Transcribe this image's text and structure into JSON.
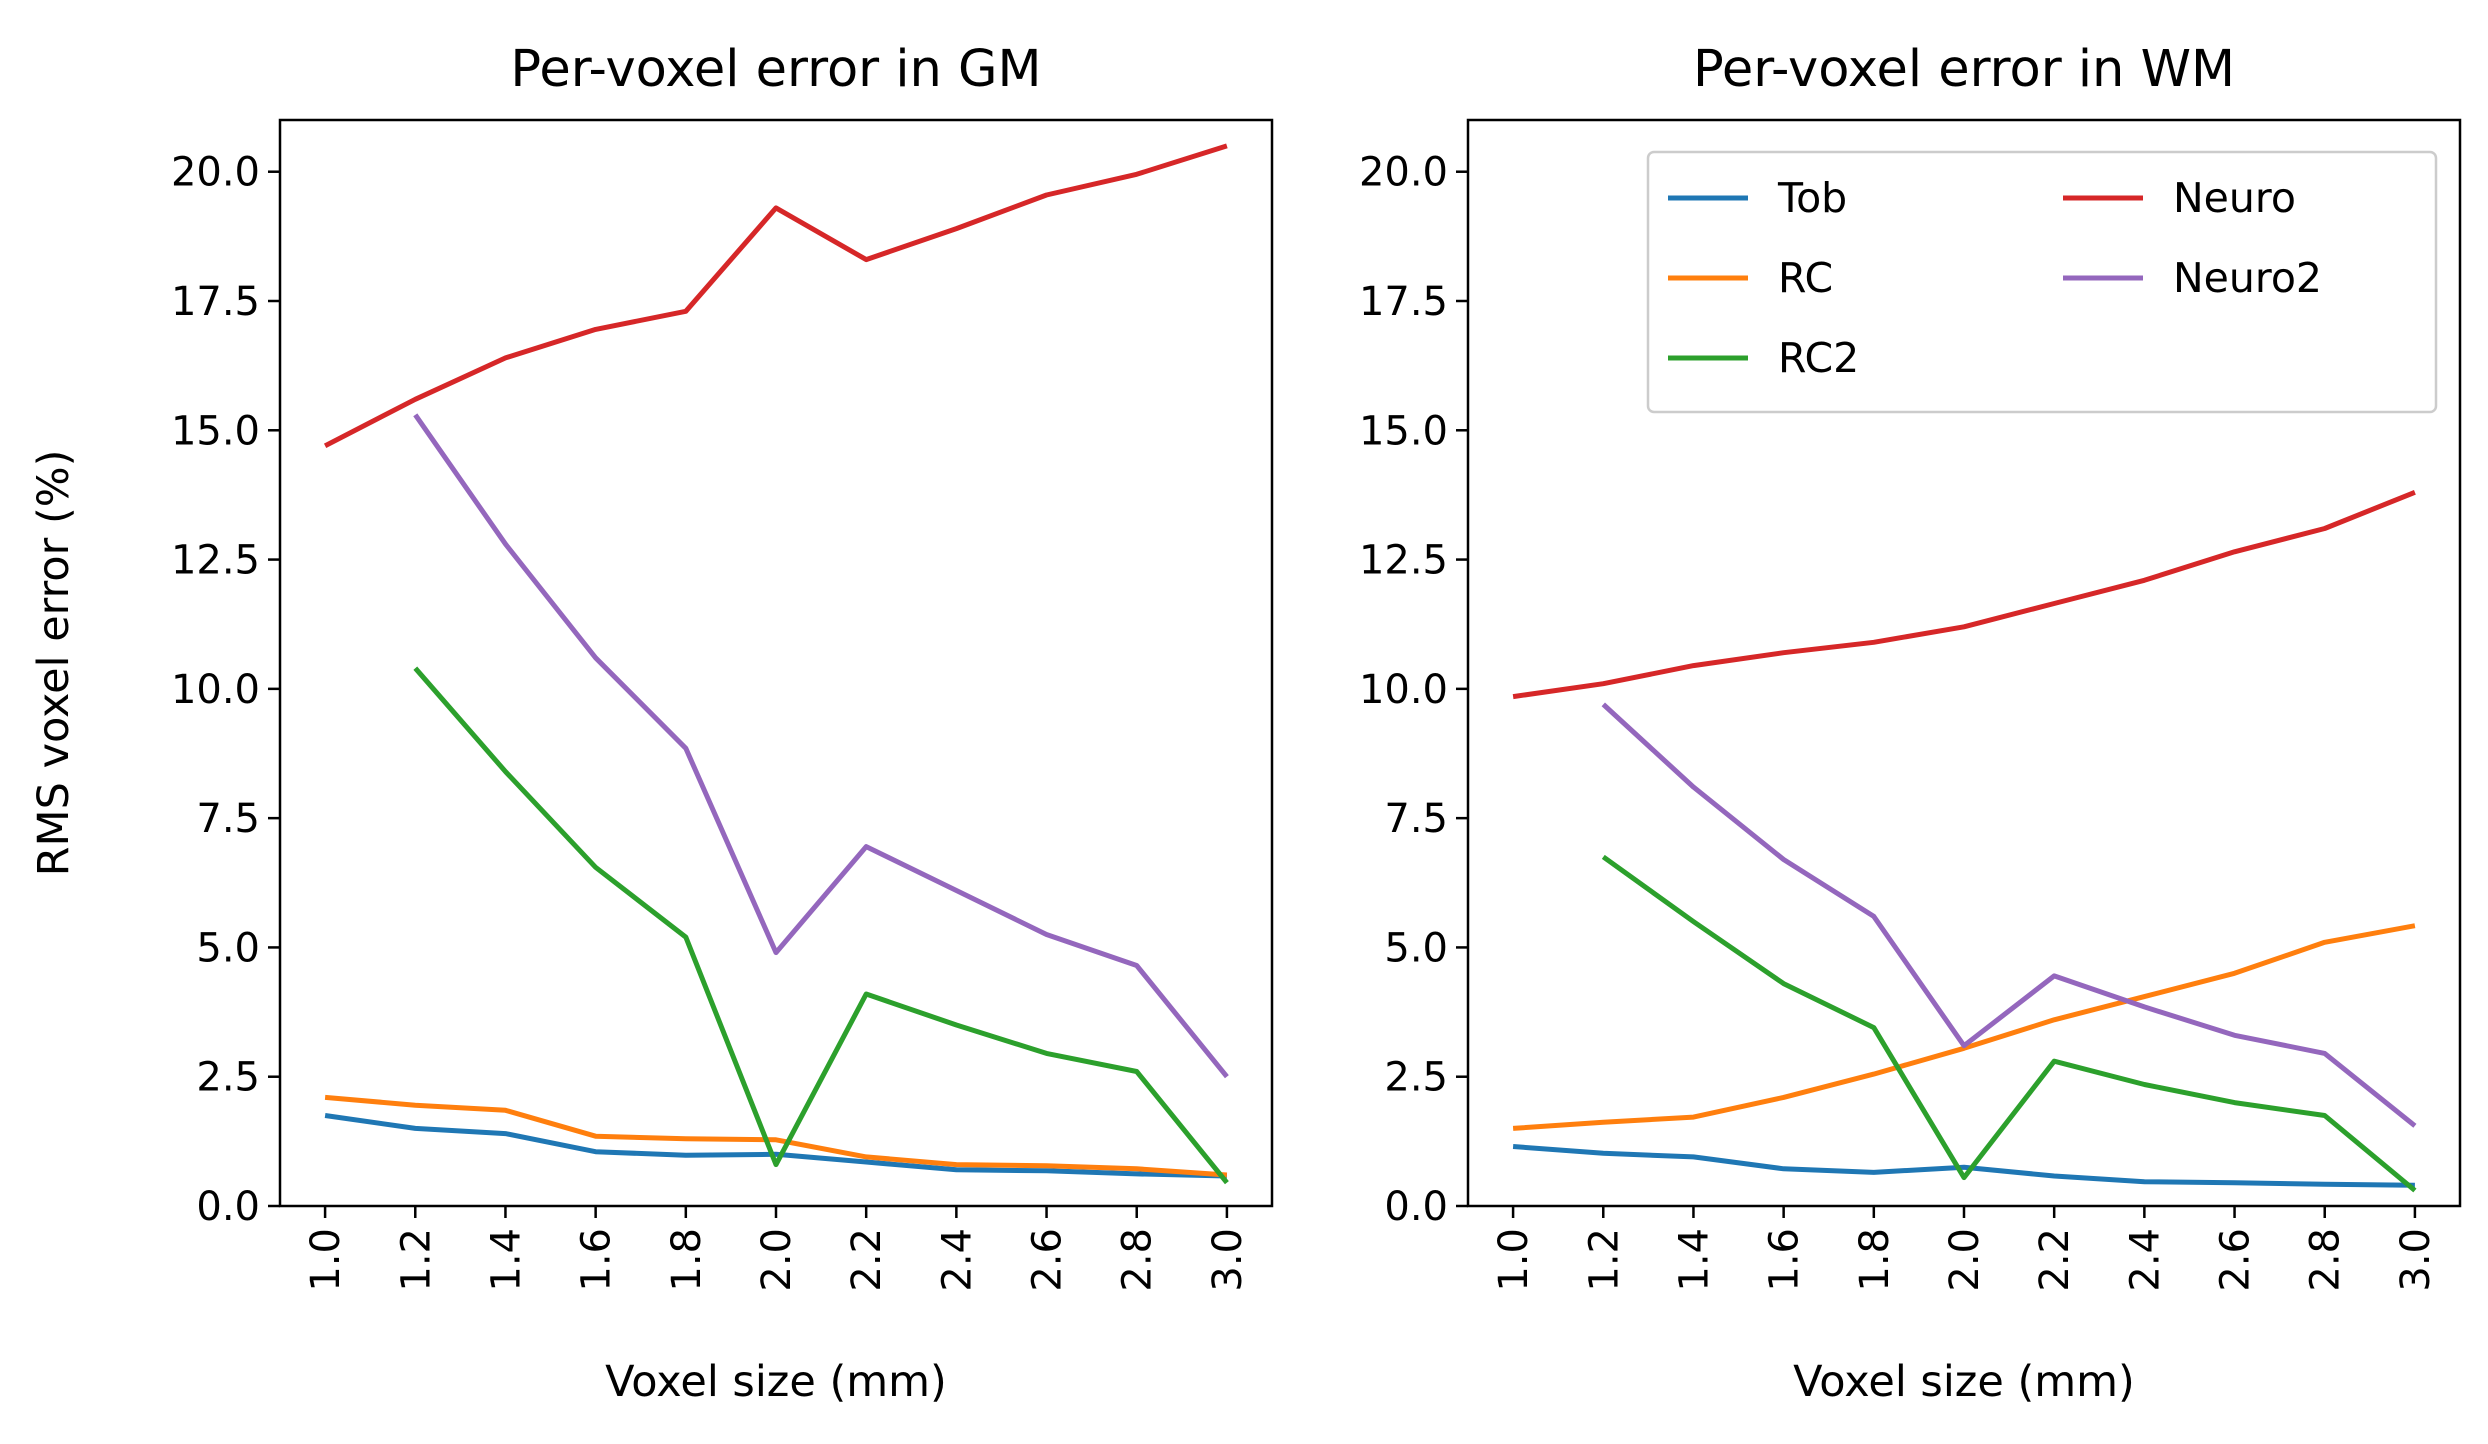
{
  "colors": {
    "Tob": "#1f77b4",
    "RC": "#ff7f0e",
    "RC2": "#2ca02c",
    "Neuro": "#d62728",
    "Neuro2": "#9467bd"
  },
  "chart_data": [
    {
      "type": "line",
      "title": "Per-voxel error in GM",
      "xlabel": "Voxel size (mm)",
      "ylabel": "RMS voxel error (%)",
      "xlim": [
        0.9,
        3.1
      ],
      "ylim": [
        0,
        21
      ],
      "x_ticks": [
        "1.0",
        "1.2",
        "1.4",
        "1.6",
        "1.8",
        "2.0",
        "2.2",
        "2.4",
        "2.6",
        "2.8",
        "3.0"
      ],
      "y_ticks": [
        "0.0",
        "2.5",
        "5.0",
        "7.5",
        "10.0",
        "12.5",
        "15.0",
        "17.5",
        "20.0"
      ],
      "grid": false,
      "legend": null,
      "series": [
        {
          "name": "Tob",
          "x": [
            1.0,
            1.2,
            1.4,
            1.6,
            1.8,
            2.0,
            2.2,
            2.4,
            2.6,
            2.8,
            3.0
          ],
          "values": [
            1.75,
            1.5,
            1.4,
            1.05,
            0.98,
            1.0,
            0.85,
            0.7,
            0.68,
            0.62,
            0.58
          ]
        },
        {
          "name": "RC",
          "x": [
            1.0,
            1.2,
            1.4,
            1.6,
            1.8,
            2.0,
            2.2,
            2.4,
            2.6,
            2.8,
            3.0
          ],
          "values": [
            2.1,
            1.95,
            1.85,
            1.35,
            1.3,
            1.28,
            0.95,
            0.8,
            0.78,
            0.72,
            0.6
          ]
        },
        {
          "name": "RC2",
          "x": [
            1.2,
            1.4,
            1.6,
            1.8,
            2.0,
            2.2,
            2.4,
            2.6,
            2.8,
            3.0
          ],
          "values": [
            10.4,
            8.4,
            6.55,
            5.2,
            0.8,
            4.1,
            3.5,
            2.95,
            2.6,
            0.45
          ]
        },
        {
          "name": "Neuro",
          "x": [
            1.0,
            1.2,
            1.4,
            1.6,
            1.8,
            2.0,
            2.2,
            2.4,
            2.6,
            2.8,
            3.0
          ],
          "values": [
            14.7,
            15.6,
            16.4,
            16.95,
            17.3,
            19.3,
            18.3,
            18.9,
            19.55,
            19.95,
            20.5
          ]
        },
        {
          "name": "Neuro2",
          "x": [
            1.2,
            1.4,
            1.6,
            1.8,
            2.0,
            2.2,
            2.4,
            2.6,
            2.8,
            3.0
          ],
          "values": [
            15.3,
            12.8,
            10.6,
            8.85,
            4.9,
            6.95,
            6.1,
            5.25,
            4.65,
            2.5
          ]
        }
      ]
    },
    {
      "type": "line",
      "title": "Per-voxel error in WM",
      "xlabel": "Voxel size (mm)",
      "ylabel": "",
      "xlim": [
        0.9,
        3.1
      ],
      "ylim": [
        0,
        21
      ],
      "x_ticks": [
        "1.0",
        "1.2",
        "1.4",
        "1.6",
        "1.8",
        "2.0",
        "2.2",
        "2.4",
        "2.6",
        "2.8",
        "3.0"
      ],
      "y_ticks": [
        "0.0",
        "2.5",
        "5.0",
        "7.5",
        "10.0",
        "12.5",
        "15.0",
        "17.5",
        "20.0"
      ],
      "grid": false,
      "legend": "top-right",
      "series": [
        {
          "name": "Tob",
          "x": [
            1.0,
            1.2,
            1.4,
            1.6,
            1.8,
            2.0,
            2.2,
            2.4,
            2.6,
            2.8,
            3.0
          ],
          "values": [
            1.15,
            1.02,
            0.95,
            0.72,
            0.65,
            0.75,
            0.58,
            0.47,
            0.45,
            0.42,
            0.4
          ]
        },
        {
          "name": "RC",
          "x": [
            1.0,
            1.2,
            1.4,
            1.6,
            1.8,
            2.0,
            2.2,
            2.4,
            2.6,
            2.8,
            3.0
          ],
          "values": [
            1.5,
            1.62,
            1.72,
            2.1,
            2.55,
            3.05,
            3.6,
            4.05,
            4.5,
            5.1,
            5.42
          ]
        },
        {
          "name": "RC2",
          "x": [
            1.2,
            1.4,
            1.6,
            1.8,
            2.0,
            2.2,
            2.4,
            2.6,
            2.8,
            3.0
          ],
          "values": [
            6.75,
            5.5,
            4.3,
            3.45,
            0.55,
            2.8,
            2.35,
            2.0,
            1.75,
            0.3
          ]
        },
        {
          "name": "Neuro",
          "x": [
            1.0,
            1.2,
            1.4,
            1.6,
            1.8,
            2.0,
            2.2,
            2.4,
            2.6,
            2.8,
            3.0
          ],
          "values": [
            9.85,
            10.1,
            10.45,
            10.7,
            10.9,
            11.2,
            11.65,
            12.1,
            12.65,
            13.1,
            13.8
          ]
        },
        {
          "name": "Neuro2",
          "x": [
            1.2,
            1.4,
            1.6,
            1.8,
            2.0,
            2.2,
            2.4,
            2.6,
            2.8,
            3.0
          ],
          "values": [
            9.7,
            8.1,
            6.7,
            5.6,
            3.1,
            4.45,
            3.85,
            3.3,
            2.95,
            1.55
          ]
        }
      ]
    }
  ]
}
